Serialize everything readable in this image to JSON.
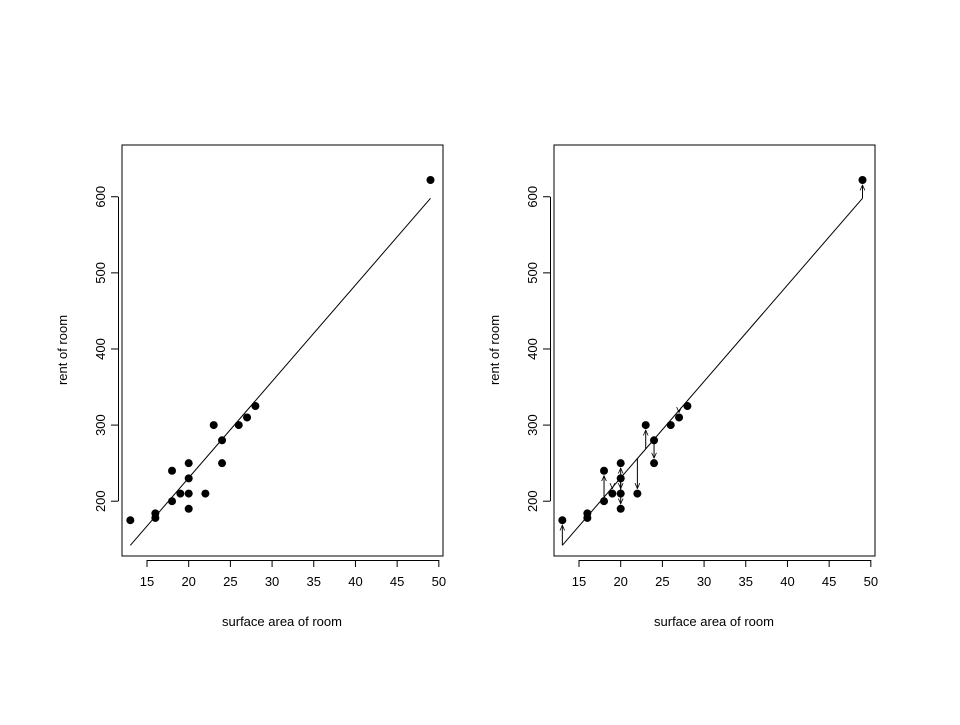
{
  "chart_data": [
    {
      "type": "scatter",
      "title": "",
      "xlabel": "surface area of room",
      "ylabel": "rent of room",
      "xlim": [
        12,
        50.5
      ],
      "ylim": [
        128,
        668
      ],
      "xticks": [
        15,
        20,
        25,
        30,
        35,
        40,
        45,
        50
      ],
      "yticks": [
        200,
        300,
        400,
        500,
        600
      ],
      "grid": false,
      "legend": "none",
      "points": {
        "x": [
          13,
          16,
          16,
          18,
          18,
          19,
          20,
          20,
          20,
          20,
          22,
          23,
          24,
          24,
          26,
          27,
          28,
          49
        ],
        "y": [
          175,
          178,
          184,
          200,
          240,
          210,
          190,
          210,
          230,
          250,
          210,
          300,
          250,
          280,
          300,
          310,
          325,
          622
        ]
      },
      "fitted_line": {
        "x": [
          13,
          49
        ],
        "y": [
          142,
          598
        ]
      },
      "residual_arrows": false,
      "colors": {
        "points": "#000000",
        "line": "#000000",
        "axes": "#000000"
      }
    },
    {
      "type": "scatter",
      "title": "",
      "xlabel": "surface area of room",
      "ylabel": "rent of room",
      "xlim": [
        12,
        50.5
      ],
      "ylim": [
        128,
        668
      ],
      "xticks": [
        15,
        20,
        25,
        30,
        35,
        40,
        45,
        50
      ],
      "yticks": [
        200,
        300,
        400,
        500,
        600
      ],
      "grid": false,
      "legend": "none",
      "points": {
        "x": [
          13,
          16,
          16,
          18,
          18,
          19,
          20,
          20,
          20,
          20,
          22,
          23,
          24,
          24,
          26,
          27,
          28,
          49
        ],
        "y": [
          175,
          178,
          184,
          200,
          240,
          210,
          190,
          210,
          230,
          250,
          210,
          300,
          250,
          280,
          300,
          310,
          325,
          622
        ]
      },
      "fitted_line": {
        "x": [
          13,
          49
        ],
        "y": [
          142,
          598
        ]
      },
      "residual_arrows": true,
      "colors": {
        "points": "#000000",
        "line": "#000000",
        "axes": "#000000"
      }
    }
  ]
}
